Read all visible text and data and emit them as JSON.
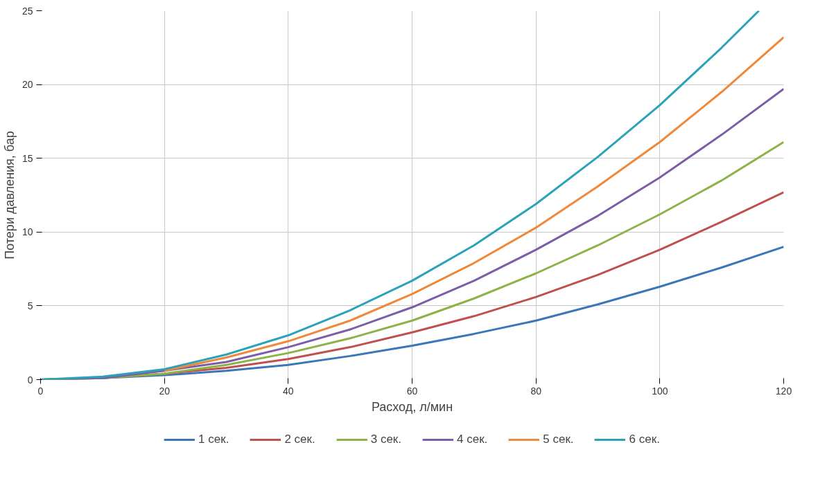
{
  "chart_data": {
    "type": "line",
    "xlabel": "Расход, л/мин",
    "ylabel": "Потери давления, бар",
    "xlim": [
      0,
      120
    ],
    "xticks": [
      0,
      20,
      40,
      60,
      80,
      100,
      120
    ],
    "ylim": [
      0,
      25
    ],
    "yticks": [
      0,
      5,
      10,
      15,
      20,
      25
    ],
    "grid": true,
    "legend": "bottom",
    "line_style": "solid",
    "marker": "none",
    "x": [
      0,
      10,
      20,
      30,
      40,
      50,
      60,
      70,
      80,
      90,
      100,
      110,
      120
    ],
    "series": [
      {
        "name": "1 сек.",
        "color": "#3a77b8",
        "values": [
          0,
          0.1,
          0.3,
          0.6,
          1.0,
          1.6,
          2.3,
          3.1,
          4.0,
          5.1,
          6.3,
          7.6,
          9.0
        ]
      },
      {
        "name": "2 сек.",
        "color": "#c0504d",
        "values": [
          0,
          0.1,
          0.4,
          0.8,
          1.4,
          2.2,
          3.2,
          4.3,
          5.6,
          7.1,
          8.8,
          10.7,
          12.7
        ]
      },
      {
        "name": "3 сек.",
        "color": "#8db348",
        "values": [
          0,
          0.1,
          0.4,
          1.0,
          1.8,
          2.8,
          4.0,
          5.5,
          7.2,
          9.1,
          11.2,
          13.5,
          16.1
        ]
      },
      {
        "name": "4 сек.",
        "color": "#7b5ea7",
        "values": [
          0,
          0.1,
          0.6,
          1.2,
          2.2,
          3.4,
          4.9,
          6.7,
          8.8,
          11.1,
          13.7,
          16.6,
          19.7
        ]
      },
      {
        "name": "5 сек.",
        "color": "#f0883a",
        "values": [
          null,
          null,
          0.6,
          1.5,
          2.6,
          4.0,
          5.8,
          7.9,
          10.3,
          13.1,
          16.1,
          19.5,
          23.2
        ]
      },
      {
        "name": "6 сек.",
        "color": "#2aa3b8",
        "x": [
          0,
          10,
          20,
          30,
          40,
          50,
          60,
          70,
          80,
          90,
          100,
          110,
          116
        ],
        "values": [
          0,
          0.2,
          0.7,
          1.7,
          3.0,
          4.7,
          6.7,
          9.1,
          11.9,
          15.1,
          18.6,
          22.5,
          25.0
        ]
      }
    ]
  }
}
